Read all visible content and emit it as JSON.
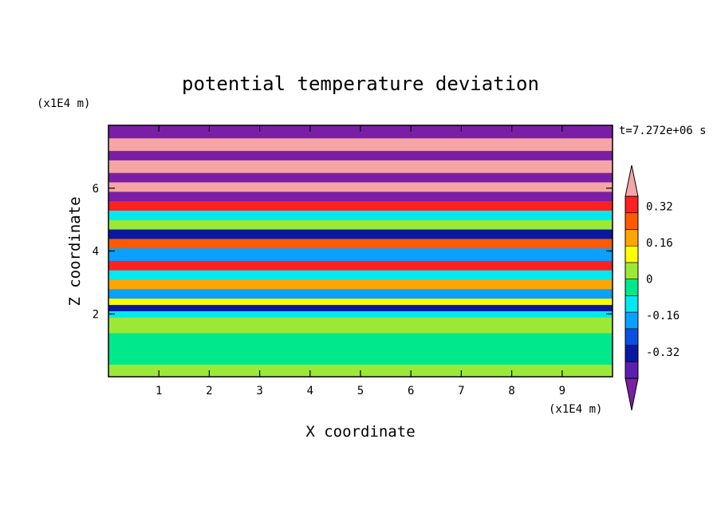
{
  "chart_data": {
    "type": "heatmap",
    "title": "potential temperature deviation",
    "xlabel": "X coordinate",
    "ylabel": "Z coordinate",
    "x_unit": "(x1E4 m)",
    "y_unit": "(x1E4 m)",
    "time_label": "t=7.272e+06 s",
    "xlim": [
      0,
      10
    ],
    "ylim": [
      0,
      8
    ],
    "x_ticks": [
      "1",
      "2",
      "3",
      "4",
      "5",
      "6",
      "7",
      "8",
      "9"
    ],
    "y_ticks": [
      "2",
      "4",
      "6"
    ],
    "colorbar": {
      "levels": [
        -0.48,
        -0.4,
        -0.32,
        -0.24,
        -0.16,
        -0.08,
        0,
        0.08,
        0.16,
        0.24,
        0.32,
        0.4,
        0.48
      ],
      "colors": [
        "#7a1fa5",
        "#5a1fb0",
        "#0a18a0",
        "#0a50e0",
        "#0aa0ff",
        "#00e8f0",
        "#00e88c",
        "#9be837",
        "#ffff00",
        "#ffa500",
        "#ff5a00",
        "#ff2020",
        "#f5a5a5"
      ],
      "tick_labels": [
        "0.32",
        "0.16",
        "0",
        "-0.16",
        "-0.32"
      ],
      "extend": "both"
    },
    "bands": [
      {
        "z": [
          0.0,
          0.4
        ],
        "value": 0.08
      },
      {
        "z": [
          0.4,
          1.4
        ],
        "value": 0.0
      },
      {
        "z": [
          1.4,
          1.9
        ],
        "value": 0.08
      },
      {
        "z": [
          1.9,
          2.1
        ],
        "value": -0.08
      },
      {
        "z": [
          2.1,
          2.3
        ],
        "value": -0.32
      },
      {
        "z": [
          2.3,
          2.5
        ],
        "value": 0.16
      },
      {
        "z": [
          2.5,
          2.8
        ],
        "value": -0.16
      },
      {
        "z": [
          2.8,
          3.1
        ],
        "value": 0.24
      },
      {
        "z": [
          3.1,
          3.4
        ],
        "value": -0.08
      },
      {
        "z": [
          3.4,
          3.7
        ],
        "value": 0.4
      },
      {
        "z": [
          3.7,
          4.1
        ],
        "value": -0.16
      },
      {
        "z": [
          4.1,
          4.4
        ],
        "value": 0.32
      },
      {
        "z": [
          4.4,
          4.7
        ],
        "value": -0.32
      },
      {
        "z": [
          4.7,
          5.0
        ],
        "value": 0.08
      },
      {
        "z": [
          5.0,
          5.3
        ],
        "value": -0.08
      },
      {
        "z": [
          5.3,
          5.6
        ],
        "value": 0.4
      },
      {
        "z": [
          5.6,
          5.9
        ],
        "value": -0.48
      },
      {
        "z": [
          5.9,
          6.2
        ],
        "value": 0.48
      },
      {
        "z": [
          6.2,
          6.5
        ],
        "value": -0.48
      },
      {
        "z": [
          6.5,
          6.9
        ],
        "value": 0.48
      },
      {
        "z": [
          6.9,
          7.2
        ],
        "value": -0.48
      },
      {
        "z": [
          7.2,
          7.6
        ],
        "value": 0.48
      },
      {
        "z": [
          7.6,
          8.0
        ],
        "value": -0.48
      }
    ]
  }
}
